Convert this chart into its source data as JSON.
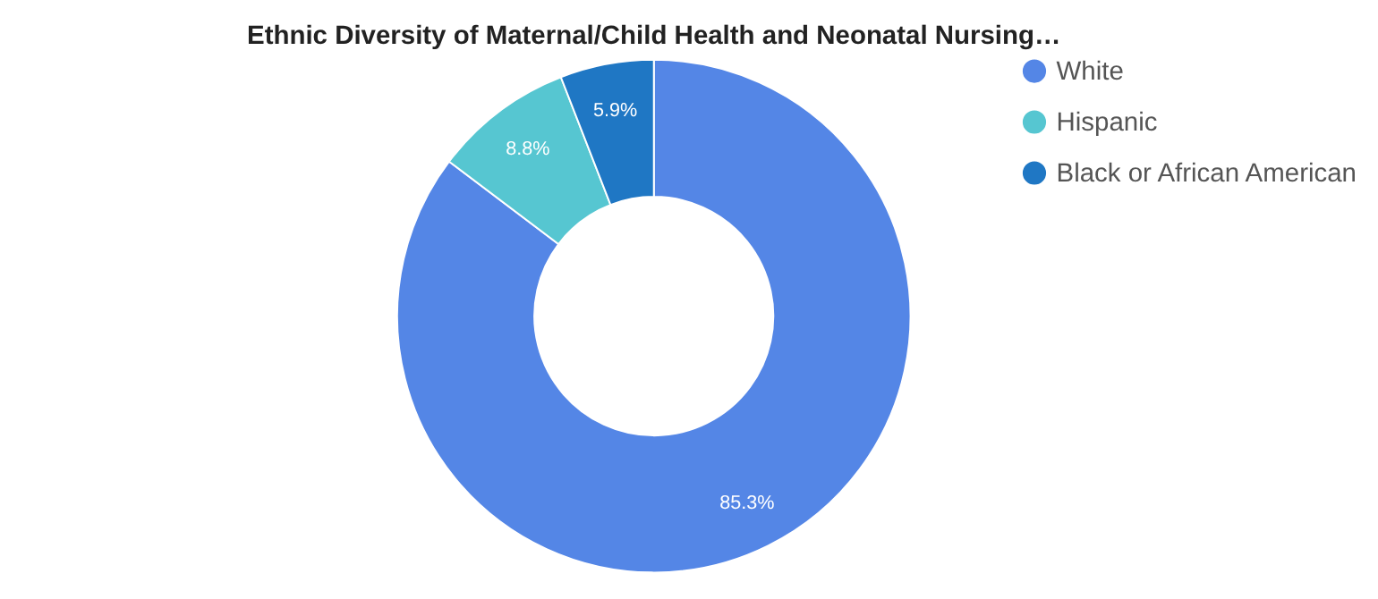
{
  "chart_data": {
    "type": "donut",
    "title": "Ethnic Diversity of Maternal/Child Health and Neonatal Nursing…",
    "categories": [
      "White",
      "Hispanic",
      "Black or African American"
    ],
    "values": [
      85.3,
      8.8,
      5.9
    ],
    "colors": [
      "#5486e6",
      "#56c6d1",
      "#1f77c4"
    ],
    "value_labels": [
      "85.3%",
      "8.8%",
      "5.9%"
    ],
    "legend": "right"
  }
}
